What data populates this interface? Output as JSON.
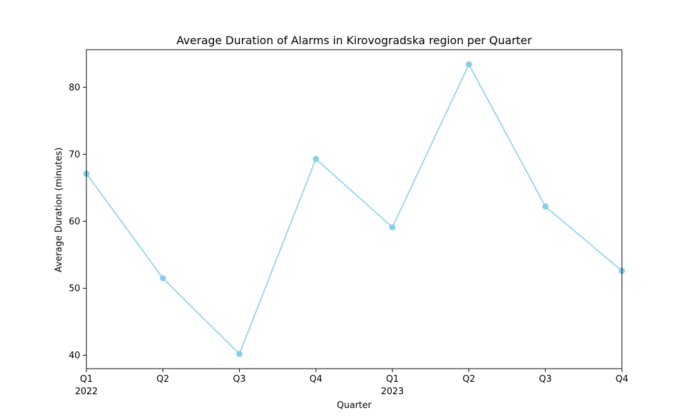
{
  "chart_data": {
    "type": "line",
    "title": "Average Duration of Alarms in Kirovogradska region per Quarter",
    "xlabel": "Quarter",
    "ylabel": "Average Duration (minutes)",
    "categories": [
      "Q1",
      "Q2",
      "Q3",
      "Q4",
      "Q1",
      "Q2",
      "Q3",
      "Q4"
    ],
    "year_labels": [
      "2022",
      "",
      "",
      "",
      "2023",
      "",
      "",
      ""
    ],
    "series": [
      {
        "values": [
          67.1,
          51.5,
          40.2,
          69.3,
          59.1,
          83.4,
          62.2,
          52.6
        ],
        "color": "#87ceeb",
        "marker": "circle"
      }
    ],
    "ylim": [
      38,
      85.6
    ],
    "yticks": [
      40,
      50,
      60,
      70,
      80
    ],
    "grid": false,
    "legend": "none"
  }
}
